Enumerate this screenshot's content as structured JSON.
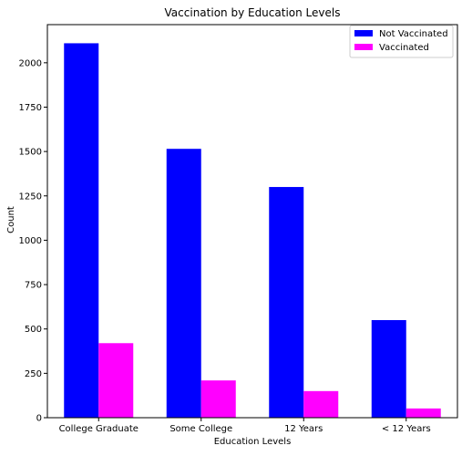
{
  "chart_data": {
    "type": "bar",
    "title": "Vaccination by Education Levels",
    "xlabel": "Education Levels",
    "ylabel": "Count",
    "categories": [
      "College Graduate",
      "Some College",
      "12 Years",
      "< 12 Years"
    ],
    "series": [
      {
        "name": "Not Vaccinated",
        "color": "#0000ff",
        "values": [
          2110,
          1515,
          1300,
          550
        ]
      },
      {
        "name": "Vaccinated",
        "color": "#ff00ff",
        "values": [
          420,
          210,
          150,
          52
        ]
      }
    ],
    "ylim": [
      0,
      2215
    ],
    "yticks": [
      0,
      250,
      500,
      750,
      1000,
      1250,
      1500,
      1750,
      2000
    ],
    "grid": false,
    "legend_position": "top-right"
  }
}
